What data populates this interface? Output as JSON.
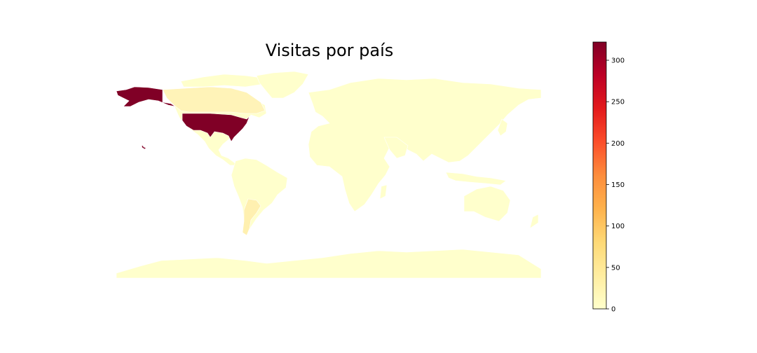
{
  "title": "Visitas por país",
  "colors": {
    "base": "#ffffcc",
    "argentina": "#fff0b0",
    "canada": "#fff3b8",
    "usa": "#800026",
    "ocean": "#ffffff"
  },
  "colorbar": {
    "colormap": "YlOrRd",
    "min": 0,
    "max": 322,
    "ticks": [
      0,
      50,
      100,
      150,
      200,
      250,
      300
    ],
    "tick_labels": [
      "0",
      "50",
      "100",
      "150",
      "200",
      "250",
      "300"
    ],
    "stops": [
      "#ffffcc",
      "#ffeda0",
      "#fed976",
      "#feb24c",
      "#fd8d3c",
      "#fc4e2a",
      "#e31a1c",
      "#bd0026",
      "#800026"
    ]
  },
  "regions": [
    {
      "name": "United States",
      "value": 322
    },
    {
      "name": "Argentina",
      "value": 12
    },
    {
      "name": "Canada",
      "value": 8
    }
  ]
}
